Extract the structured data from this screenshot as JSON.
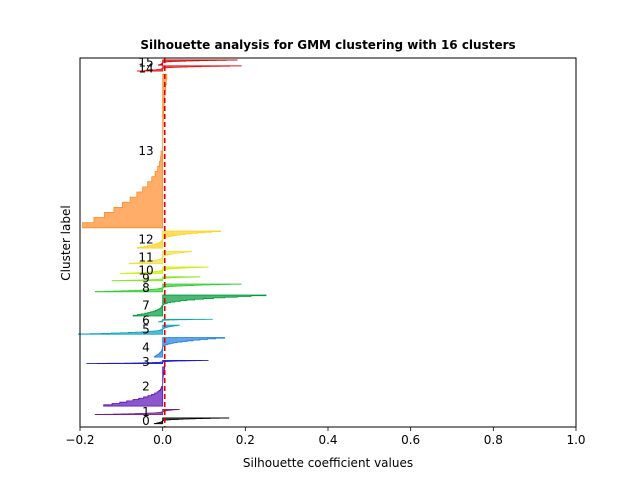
{
  "chart_data": {
    "type": "area",
    "title": "Silhouette analysis for GMM clustering with 16 clusters",
    "xlabel": "Silhouette coefficient values",
    "ylabel": "Cluster label",
    "xlim": [
      -0.2,
      1.0
    ],
    "x_ticks": [
      "−0.2",
      "0.0",
      "0.2",
      "0.4",
      "0.6",
      "0.8",
      "1.0"
    ],
    "x_tick_values": [
      -0.2,
      0.0,
      0.2,
      0.4,
      0.6,
      0.8,
      1.0
    ],
    "average_silhouette_score": 0.005,
    "ylim": [
      0,
      1130
    ],
    "grid": false,
    "clusters": [
      {
        "label": "0",
        "color": "#000000",
        "y_lower": 10,
        "size": 18,
        "max": 0.16,
        "min": -0.02
      },
      {
        "label": "1",
        "color": "#7a1a8c",
        "y_lower": 38,
        "size": 16,
        "max": 0.04,
        "min": -0.16
      },
      {
        "label": "2",
        "color": "#5a10b8",
        "y_lower": 64,
        "size": 120,
        "max": 0.005,
        "min": -0.14
      },
      {
        "label": "3",
        "color": "#1c1cc8",
        "y_lower": 194,
        "size": 10,
        "max": 0.11,
        "min": -0.18
      },
      {
        "label": "4",
        "color": "#1e7ee0",
        "y_lower": 214,
        "size": 60,
        "max": 0.15,
        "min": -0.02
      },
      {
        "label": "5",
        "color": "#0aa0c0",
        "y_lower": 284,
        "size": 28,
        "max": 0.04,
        "min": -0.2
      },
      {
        "label": "6",
        "color": "#10a8a0",
        "y_lower": 322,
        "size": 8,
        "max": 0.12,
        "min": -0.01
      },
      {
        "label": "7",
        "color": "#009a3a",
        "y_lower": 340,
        "size": 64,
        "max": 0.25,
        "min": -0.07
      },
      {
        "label": "8",
        "color": "#33cc33",
        "y_lower": 414,
        "size": 24,
        "max": 0.19,
        "min": -0.16
      },
      {
        "label": "9",
        "color": "#88e622",
        "y_lower": 448,
        "size": 12,
        "max": 0.09,
        "min": -0.12
      },
      {
        "label": "10",
        "color": "#ccee00",
        "y_lower": 470,
        "size": 20,
        "max": 0.11,
        "min": -0.1
      },
      {
        "label": "11",
        "color": "#f0e040",
        "y_lower": 500,
        "size": 38,
        "max": 0.07,
        "min": -0.08
      },
      {
        "label": "12",
        "color": "#ffd21e",
        "y_lower": 548,
        "size": 52,
        "max": 0.14,
        "min": -0.06
      },
      {
        "label": "13",
        "color": "#ff8a28",
        "y_lower": 610,
        "size": 470,
        "max": 0.01,
        "min": -0.19
      },
      {
        "label": "14",
        "color": "#e81414",
        "y_lower": 1090,
        "size": 16,
        "max": 0.19,
        "min": -0.06
      },
      {
        "label": "15",
        "color": "#cc0a0a",
        "y_lower": 1108,
        "size": 16,
        "max": 0.18,
        "min": -0.01
      }
    ]
  }
}
